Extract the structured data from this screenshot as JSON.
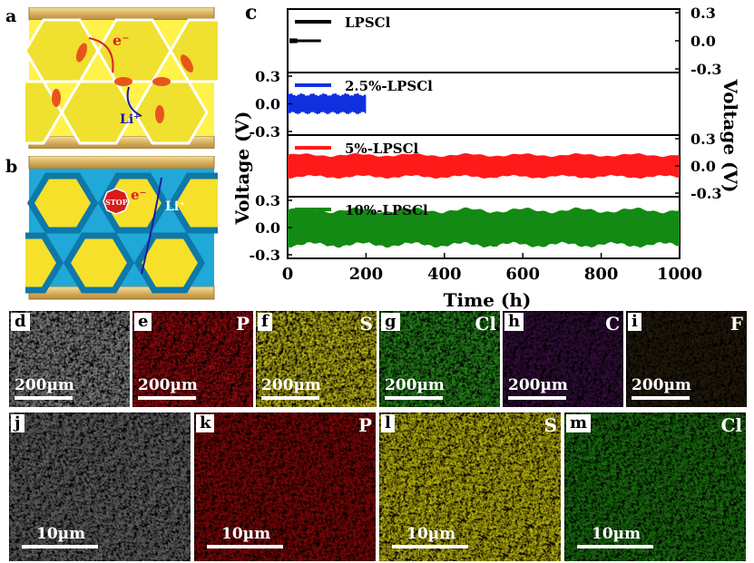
{
  "panel_labels": {
    "a": "a",
    "b": "b",
    "c": "c",
    "d": "d",
    "e": "e",
    "f": "f",
    "g": "g",
    "h": "h",
    "i": "i",
    "j": "j",
    "k": "k",
    "l": "l",
    "m": "m"
  },
  "schematic": {
    "a": {
      "electron": "e⁻",
      "lithium": "Li⁺"
    },
    "b": {
      "stop": "STOP",
      "electron": "e⁻",
      "lithium": "Li⁺"
    }
  },
  "chart_data": {
    "type": "line",
    "xlabel": "Time (h)",
    "ylabel_left": "Voltage (V)",
    "ylabel_right": "Voltage (V)",
    "xlim": [
      0,
      1000
    ],
    "x_ticks": [
      0,
      200,
      400,
      600,
      800,
      1000
    ],
    "ylim": [
      -0.3,
      0.3
    ],
    "y_ticks": [
      "0.3",
      "0.0",
      "-0.3"
    ],
    "series": [
      {
        "name": "LPSCl",
        "color": "#000000",
        "duration_h": 85,
        "amplitude_v": 0.03
      },
      {
        "name": "2.5%-LPSCl",
        "color": "#1030e0",
        "duration_h": 200,
        "amplitude_v": 0.1
      },
      {
        "name": "5%-LPSCl",
        "color": "#ff1a1a",
        "duration_h": 1000,
        "amplitude_v": 0.12
      },
      {
        "name": "10%-LPSCl",
        "color": "#138a13",
        "duration_h": 1000,
        "amplitude_v": 0.19
      }
    ]
  },
  "eds_row1": [
    {
      "label": "d",
      "element": "",
      "scale": "200µm",
      "color": "#8a8a8a"
    },
    {
      "label": "e",
      "element": "P",
      "scale": "200µm",
      "color": "#9a0c10"
    },
    {
      "label": "f",
      "element": "S",
      "scale": "200µm",
      "color": "#c9c21a"
    },
    {
      "label": "g",
      "element": "Cl",
      "scale": "200µm",
      "color": "#2a8f1e"
    },
    {
      "label": "h",
      "element": "C",
      "scale": "200µm",
      "color": "#3a1242"
    },
    {
      "label": "i",
      "element": "F",
      "scale": "200µm",
      "color": "#2a2010"
    }
  ],
  "eds_row2": [
    {
      "label": "j",
      "element": "",
      "scale": "10µm",
      "color": "#6a6a6a"
    },
    {
      "label": "k",
      "element": "P",
      "scale": "10µm",
      "color": "#8a0a0a"
    },
    {
      "label": "l",
      "element": "S",
      "scale": "10µm",
      "color": "#c8c010"
    },
    {
      "label": "m",
      "element": "Cl",
      "scale": "10µm",
      "color": "#1f7a12"
    }
  ]
}
